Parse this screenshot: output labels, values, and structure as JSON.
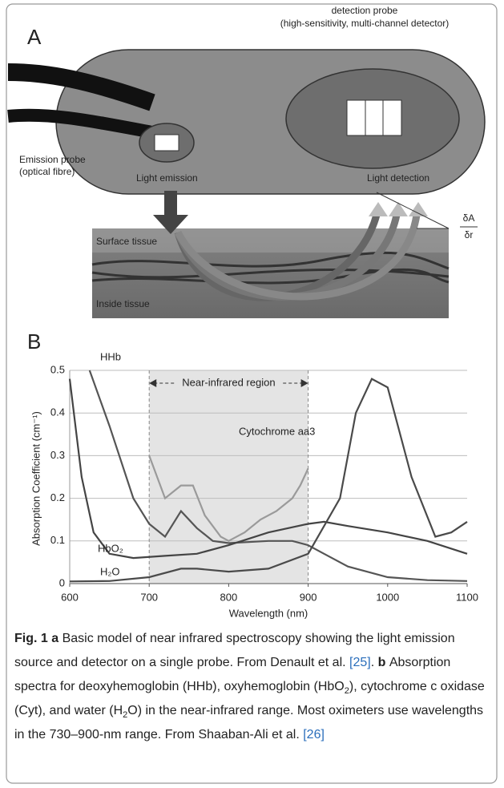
{
  "panel_a": {
    "label": "A",
    "detection_probe": "detection probe",
    "detection_probe_detail": "(high-sensitivity, multi-channel detector)",
    "emission_probe": "Emission probe",
    "emission_probe_detail": "(optical fibre)",
    "light_emission": "Light emission",
    "light_detection": "Light detection",
    "surface_tissue": "Surface tissue",
    "inside_tissue": "Inside tissue",
    "gradient_numerator": "δA",
    "gradient_denominator": "δr"
  },
  "panel_b": {
    "label": "B"
  },
  "chart_data": {
    "type": "line",
    "xlabel": "Wavelength (nm)",
    "ylabel": "Absorption Coefficient (cm⁻¹)",
    "xlim": [
      600,
      1100
    ],
    "xticks": [
      600,
      700,
      800,
      900,
      1000,
      1100
    ],
    "ylim": [
      0,
      0.5
    ],
    "yticks": [
      0,
      0.1,
      0.2,
      0.3,
      0.4,
      0.5
    ],
    "grid": true,
    "shaded_region": {
      "label": "Near-infrared region",
      "range": [
        700,
        900
      ]
    },
    "series": [
      {
        "name": "HHb",
        "color": "#555555",
        "x": [
          625,
          650,
          680,
          700,
          720,
          740,
          760,
          780,
          800,
          850,
          880,
          900,
          920,
          950,
          1000,
          1050,
          1100
        ],
        "values": [
          0.5,
          0.37,
          0.2,
          0.14,
          0.11,
          0.17,
          0.13,
          0.1,
          0.095,
          0.1,
          0.1,
          0.09,
          0.07,
          0.04,
          0.015,
          0.008,
          0.006
        ]
      },
      {
        "name": "HbO₂",
        "color": "#444444",
        "x": [
          600,
          615,
          630,
          650,
          680,
          720,
          760,
          800,
          850,
          900,
          920,
          950,
          1000,
          1050,
          1100
        ],
        "values": [
          0.48,
          0.25,
          0.12,
          0.07,
          0.06,
          0.065,
          0.07,
          0.09,
          0.12,
          0.14,
          0.145,
          0.135,
          0.12,
          0.1,
          0.07
        ]
      },
      {
        "name": "H₂O",
        "color": "#4a4a4a",
        "x": [
          600,
          650,
          700,
          740,
          760,
          800,
          850,
          900,
          940,
          960,
          980,
          1000,
          1030,
          1060,
          1080,
          1100
        ],
        "values": [
          0.005,
          0.006,
          0.015,
          0.035,
          0.035,
          0.028,
          0.035,
          0.07,
          0.2,
          0.4,
          0.48,
          0.46,
          0.25,
          0.11,
          0.12,
          0.145
        ]
      },
      {
        "name": "Cytochrome aa3",
        "color": "#9a9a9a",
        "x": [
          700,
          720,
          740,
          755,
          770,
          790,
          800,
          820,
          840,
          860,
          880,
          890,
          900
        ],
        "values": [
          0.3,
          0.2,
          0.23,
          0.23,
          0.16,
          0.11,
          0.1,
          0.12,
          0.15,
          0.17,
          0.2,
          0.23,
          0.27
        ]
      }
    ]
  },
  "caption": {
    "segments": [
      {
        "text": "Fig. 1",
        "style": "bold"
      },
      {
        "text": " a ",
        "style": "bold"
      },
      {
        "text": "Basic model of near infrared spectroscopy showing the light emission source and detector on a single probe. From Denault et al. ",
        "style": "plain"
      },
      {
        "text": "[25]",
        "style": "ref"
      },
      {
        "text": ".",
        "style": "plain"
      },
      {
        "text": " b ",
        "style": "bold"
      },
      {
        "text": "Absorption spectra for deoxyhemoglobin (HHb), oxyhemoglobin (HbO",
        "style": "plain"
      },
      {
        "text": "2",
        "style": "sub"
      },
      {
        "text": "), cytochrome c oxidase (Cyt), and water (H",
        "style": "plain"
      },
      {
        "text": "2",
        "style": "sub"
      },
      {
        "text": "O) in the near-infrared range. Most oximeters use wavelengths in the 730–900-nm range. From Shaaban-Ali et al. ",
        "style": "plain"
      },
      {
        "text": "[26]",
        "style": "ref"
      }
    ]
  }
}
